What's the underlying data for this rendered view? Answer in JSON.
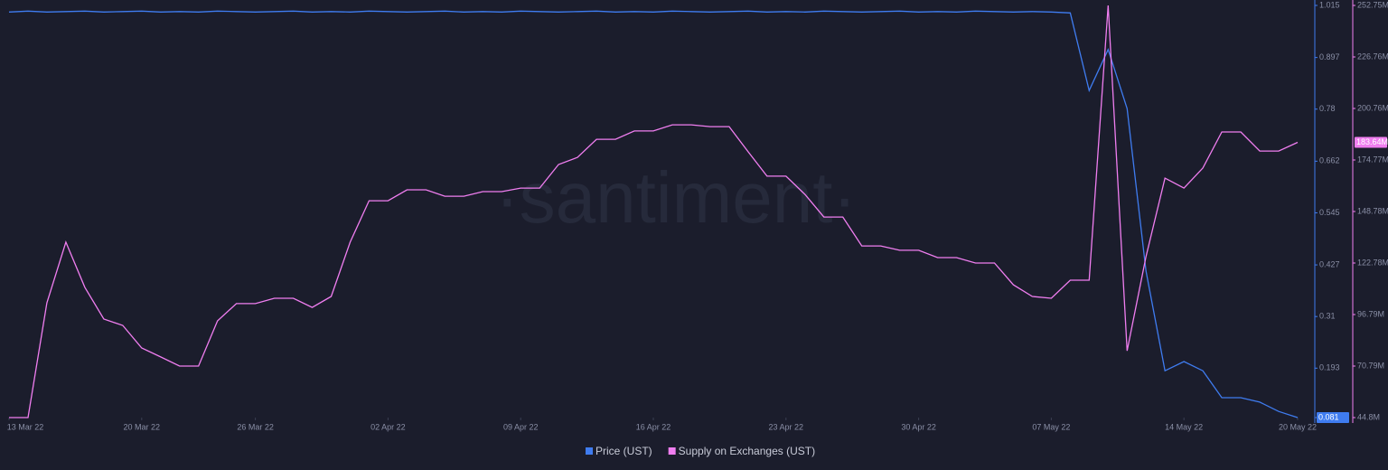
{
  "chart_data": {
    "type": "line",
    "watermark": "·santiment·",
    "x": [
      "2022-03-13",
      "2022-03-14",
      "2022-03-15",
      "2022-03-16",
      "2022-03-17",
      "2022-03-18",
      "2022-03-19",
      "2022-03-20",
      "2022-03-21",
      "2022-03-22",
      "2022-03-23",
      "2022-03-24",
      "2022-03-25",
      "2022-03-26",
      "2022-03-27",
      "2022-03-28",
      "2022-03-29",
      "2022-03-30",
      "2022-03-31",
      "2022-04-01",
      "2022-04-02",
      "2022-04-03",
      "2022-04-04",
      "2022-04-05",
      "2022-04-06",
      "2022-04-07",
      "2022-04-08",
      "2022-04-09",
      "2022-04-10",
      "2022-04-11",
      "2022-04-12",
      "2022-04-13",
      "2022-04-14",
      "2022-04-15",
      "2022-04-16",
      "2022-04-17",
      "2022-04-18",
      "2022-04-19",
      "2022-04-20",
      "2022-04-21",
      "2022-04-22",
      "2022-04-23",
      "2022-04-24",
      "2022-04-25",
      "2022-04-26",
      "2022-04-27",
      "2022-04-28",
      "2022-04-29",
      "2022-04-30",
      "2022-05-01",
      "2022-05-02",
      "2022-05-03",
      "2022-05-04",
      "2022-05-05",
      "2022-05-06",
      "2022-05-07",
      "2022-05-08",
      "2022-05-09",
      "2022-05-10",
      "2022-05-11",
      "2022-05-12",
      "2022-05-13",
      "2022-05-14",
      "2022-05-15",
      "2022-05-16",
      "2022-05-17",
      "2022-05-18",
      "2022-05-19",
      "2022-05-20"
    ],
    "xlim": [
      "2022-03-13",
      "2022-05-20"
    ],
    "xticks": [
      {
        "value": "2022-03-13",
        "label": "13 Mar 22"
      },
      {
        "value": "2022-03-20",
        "label": "20 Mar 22"
      },
      {
        "value": "2022-03-26",
        "label": "26 Mar 22"
      },
      {
        "value": "2022-04-02",
        "label": "02 Apr 22"
      },
      {
        "value": "2022-04-09",
        "label": "09 Apr 22"
      },
      {
        "value": "2022-04-16",
        "label": "16 Apr 22"
      },
      {
        "value": "2022-04-23",
        "label": "23 Apr 22"
      },
      {
        "value": "2022-04-30",
        "label": "30 Apr 22"
      },
      {
        "value": "2022-05-07",
        "label": "07 May 22"
      },
      {
        "value": "2022-05-14",
        "label": "14 May 22"
      },
      {
        "value": "2022-05-20",
        "label": "20 May 22"
      }
    ],
    "ylim": [
      0.081,
      1.015
    ],
    "yticks": [
      1.015,
      0.897,
      0.78,
      0.662,
      0.545,
      0.427,
      0.31,
      0.193,
      0.081
    ],
    "y2lim": [
      44.8,
      252.75
    ],
    "y2ticks": [
      {
        "value": 252.75,
        "label": "252.75M"
      },
      {
        "value": 226.76,
        "label": "226.76M"
      },
      {
        "value": 200.76,
        "label": "200.76M"
      },
      {
        "value": 174.77,
        "label": "174.77M"
      },
      {
        "value": 148.78,
        "label": "148.78M"
      },
      {
        "value": 122.78,
        "label": "122.78M"
      },
      {
        "value": 96.79,
        "label": "96.79M"
      },
      {
        "value": 70.79,
        "label": "70.79M"
      },
      {
        "value": 44.8,
        "label": "44.8M"
      }
    ],
    "series": [
      {
        "name": "Price (UST)",
        "color": "#3f7cf0",
        "values": [
          1.0,
          1.002,
          1.0,
          1.001,
          1.002,
          1.0,
          1.001,
          1.002,
          1.0,
          1.001,
          1.0,
          1.002,
          1.001,
          1.0,
          1.001,
          1.002,
          1.0,
          1.001,
          1.0,
          1.002,
          1.001,
          1.0,
          1.001,
          1.002,
          1.0,
          1.001,
          1.0,
          1.002,
          1.001,
          1.0,
          1.001,
          1.002,
          1.0,
          1.001,
          1.0,
          1.002,
          1.001,
          1.0,
          1.001,
          1.002,
          1.0,
          1.001,
          1.0,
          1.002,
          1.001,
          1.0,
          1.001,
          1.002,
          1.0,
          1.001,
          1.0,
          1.002,
          1.001,
          1.0,
          1.001,
          1.0,
          0.998,
          0.822,
          0.915,
          0.781,
          0.413,
          0.187,
          0.208,
          0.187,
          0.126,
          0.126,
          0.116,
          0.095,
          0.081
        ],
        "last_value_label": {
          "value": 0.081,
          "label": "0.081"
        }
      },
      {
        "name": "Supply on Exchanges (UST)",
        "color": "#f07ef0",
        "axis": "y2",
        "values": [
          44.8,
          44.8,
          102.7,
          133.3,
          110.5,
          94.5,
          91.3,
          79.9,
          75.4,
          70.8,
          70.8,
          93.6,
          102.3,
          102.3,
          105,
          105,
          100.4,
          105.9,
          133.3,
          154.2,
          154.2,
          159.7,
          159.7,
          156.5,
          156.5,
          158.8,
          158.8,
          160.6,
          160.6,
          172.5,
          176.1,
          185.2,
          185.2,
          189.4,
          189.4,
          192.5,
          192.5,
          191.6,
          191.6,
          178.9,
          166.6,
          166.6,
          157.4,
          146,
          146,
          131.4,
          131.4,
          129.2,
          129.2,
          125.5,
          125.5,
          122.8,
          122.8,
          111.8,
          105.9,
          105,
          114.1,
          114.1,
          252.75,
          78.5,
          126,
          165.6,
          160.6,
          170.7,
          188.9,
          188.9,
          179.3,
          179.3,
          183.64
        ],
        "last_value_label": {
          "value": 183.64,
          "label": "183.64M"
        }
      }
    ]
  }
}
